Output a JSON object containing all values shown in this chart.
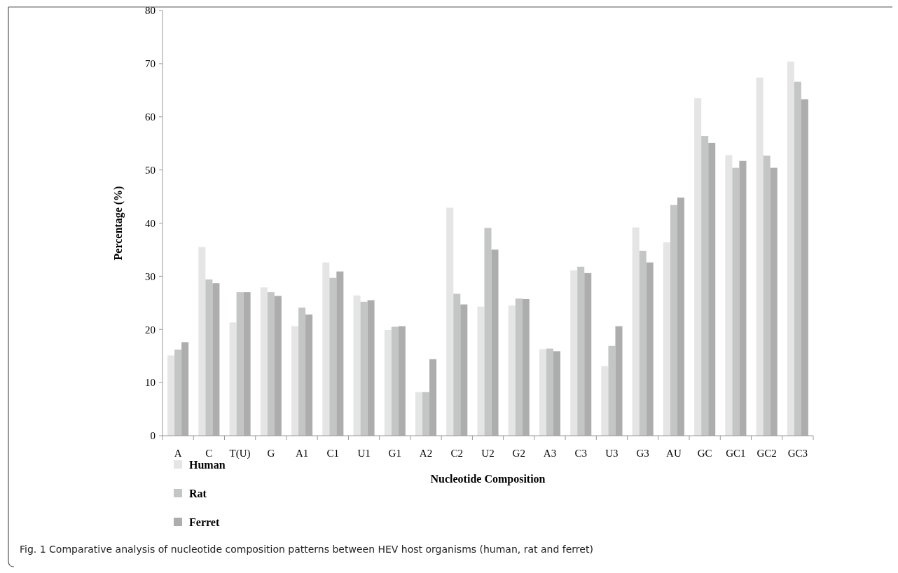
{
  "chart_data": {
    "type": "bar",
    "xlabel": "Nucleotide Composition",
    "ylabel": "Percentage (%)",
    "categories": [
      "A",
      "C",
      "T(U)",
      "G",
      "A1",
      "C1",
      "U1",
      "G1",
      "A2",
      "C2",
      "U2",
      "G2",
      "A3",
      "C3",
      "U3",
      "G3",
      "AU",
      "GC",
      "GC1",
      "GC2",
      "GC3"
    ],
    "series": [
      {
        "name": "Human",
        "color": "#e5e5e5",
        "values": [
          15.1,
          35.5,
          21.3,
          27.9,
          20.6,
          32.6,
          26.4,
          19.9,
          8.2,
          42.9,
          24.3,
          24.5,
          16.3,
          31.1,
          13.1,
          39.2,
          36.4,
          63.5,
          52.8,
          67.4,
          70.4
        ]
      },
      {
        "name": "Rat",
        "color": "#c4c5c5",
        "values": [
          16.2,
          29.4,
          27.0,
          27.0,
          24.1,
          29.7,
          25.2,
          20.5,
          8.2,
          26.7,
          39.1,
          25.8,
          16.4,
          31.8,
          16.9,
          34.8,
          43.4,
          56.4,
          50.4,
          52.7,
          66.6
        ]
      },
      {
        "name": "Ferret",
        "color": "#adadad",
        "values": [
          17.6,
          28.7,
          27.0,
          26.3,
          22.8,
          30.9,
          25.5,
          20.6,
          14.4,
          24.7,
          35.0,
          25.7,
          15.9,
          30.6,
          20.6,
          32.6,
          44.8,
          55.1,
          51.7,
          50.4,
          63.3
        ]
      }
    ],
    "ylim": [
      0,
      80
    ],
    "yticks": [
      0,
      10,
      20,
      30,
      40,
      50,
      60,
      70,
      80
    ],
    "grid": false,
    "legend": "bottom left",
    "annotations": [
      "Fig. 1  Comparative analysis of nucleotide composition patterns between HEV host organisms (human, rat and ferret)"
    ]
  }
}
